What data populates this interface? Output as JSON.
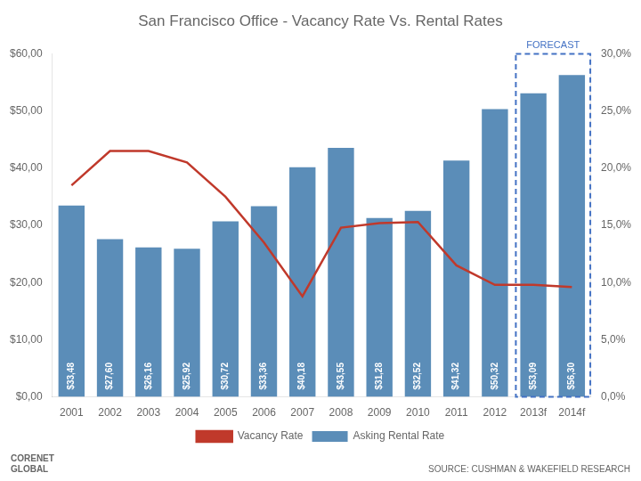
{
  "chart_data": {
    "type": "bar",
    "title": "San Francisco Office - Vacancy Rate Vs. Rental Rates",
    "categories": [
      "2001",
      "2002",
      "2003",
      "2004",
      "2005",
      "2006",
      "2007",
      "2008",
      "2009",
      "2010",
      "2011",
      "2012",
      "2013f",
      "2014f"
    ],
    "series": [
      {
        "name": "Asking Rental Rate",
        "type": "bar",
        "color": "#5B8DB8",
        "values": [
          33.48,
          27.6,
          26.16,
          25.92,
          30.72,
          33.36,
          40.18,
          43.55,
          31.28,
          32.52,
          41.32,
          50.32,
          53.09,
          56.3
        ],
        "value_labels": [
          "$33,48",
          "$27,60",
          "$26,16",
          "$25,92",
          "$30,72",
          "$33,36",
          "$40,18",
          "$43,55",
          "$31,28",
          "$32,52",
          "$41,32",
          "$50,32",
          "$53,09",
          "$56,30"
        ]
      },
      {
        "name": "Vacancy Rate",
        "type": "line",
        "axis": "y2",
        "color": "#C0392B",
        "marker": "none",
        "values": [
          0.185,
          0.215,
          0.215,
          0.205,
          0.175,
          0.135,
          0.088,
          0.148,
          0.152,
          0.153,
          0.115,
          0.098,
          0.098,
          0.096
        ]
      }
    ],
    "data_labels": true,
    "ylim": [
      0,
      60
    ],
    "yticks": [
      {
        "value": 0,
        "label": "$0,00"
      },
      {
        "value": 10,
        "label": "$10,00"
      },
      {
        "value": 20,
        "label": "$20,00"
      },
      {
        "value": 30,
        "label": "$30,00"
      },
      {
        "value": 40,
        "label": "$40,00"
      },
      {
        "value": 50,
        "label": "$50,00"
      },
      {
        "value": 60,
        "label": "$60,00"
      }
    ],
    "y2lim": [
      0,
      0.3
    ],
    "y2ticks": [
      {
        "value": 0.0,
        "label": "0,0%"
      },
      {
        "value": 0.05,
        "label": "5,0%"
      },
      {
        "value": 0.1,
        "label": "10,0%"
      },
      {
        "value": 0.15,
        "label": "15,0%"
      },
      {
        "value": 0.2,
        "label": "20,0%"
      },
      {
        "value": 0.25,
        "label": "25,0%"
      },
      {
        "value": 0.3,
        "label": "30,0%"
      }
    ],
    "grid": false,
    "legend": "bottom",
    "annotations": [
      {
        "text": "FORECAST",
        "x": [
          "2013f",
          "2014f"
        ],
        "color": "#4472C4"
      },
      {
        "text": "SOURCE: CUSHMAN & WAKEFIELD RESEARCH"
      },
      {
        "text": "CORENET\nGLOBAL"
      }
    ]
  }
}
